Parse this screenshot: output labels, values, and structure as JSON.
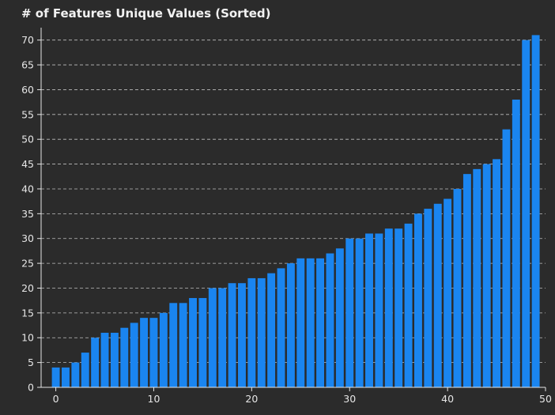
{
  "chart_data": {
    "type": "bar",
    "title": "# of Features Unique Values (Sorted)",
    "xlabel": "",
    "ylabel": "",
    "x": [
      0,
      1,
      2,
      3,
      4,
      5,
      6,
      7,
      8,
      9,
      10,
      11,
      12,
      13,
      14,
      15,
      16,
      17,
      18,
      19,
      20,
      21,
      22,
      23,
      24,
      25,
      26,
      27,
      28,
      29,
      30,
      31,
      32,
      33,
      34,
      35,
      36,
      37,
      38,
      39,
      40,
      41,
      42,
      43,
      44,
      45,
      46,
      47,
      48,
      49
    ],
    "values": [
      4,
      4,
      5,
      7,
      10,
      11,
      11,
      12,
      13,
      14,
      14,
      15,
      17,
      17,
      18,
      18,
      20,
      20,
      21,
      21,
      22,
      22,
      23,
      24,
      25,
      26,
      26,
      26,
      27,
      28,
      30,
      30,
      31,
      31,
      32,
      32,
      33,
      35,
      36,
      37,
      38,
      40,
      43,
      44,
      45,
      46,
      52,
      58,
      70,
      71
    ],
    "xlim": [
      -1.5,
      50
    ],
    "ylim": [
      0,
      72.5
    ],
    "xticks": [
      0,
      10,
      20,
      30,
      40,
      50
    ],
    "yticks": [
      0,
      5,
      10,
      15,
      20,
      25,
      30,
      35,
      40,
      45,
      50,
      55,
      60,
      65,
      70
    ],
    "grid": "horizontal dashed",
    "colors": {
      "background": "#2b2b2b",
      "bar": "#1a85f0",
      "grid": "#d9d9d9",
      "axis": "#e6e6e6",
      "text": "#e6e6e6"
    }
  }
}
